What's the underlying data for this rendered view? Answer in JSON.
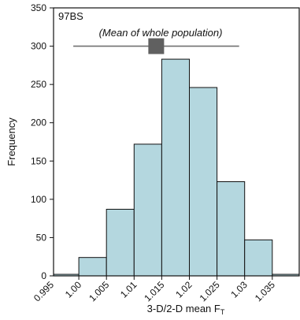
{
  "chart_data": {
    "type": "bar",
    "panel_label": "97BS",
    "annotation": "(Mean of whole population)",
    "xlabel_main": "3-D/2-D mean F",
    "xlabel_sub": "T",
    "ylabel": "Frequency",
    "ylim": [
      0,
      350
    ],
    "yticks": [
      0,
      50,
      100,
      150,
      200,
      250,
      300,
      350
    ],
    "xlim": [
      0.995,
      1.035
    ],
    "xticks": [
      "0.995",
      "1.00",
      "1.005",
      "1.01",
      "1.015",
      "1.02",
      "1.025",
      "1.03",
      "1.035"
    ],
    "bins": [
      {
        "from": 0.995,
        "to": 1.0,
        "value": 2
      },
      {
        "from": 1.0,
        "to": 1.005,
        "value": 24
      },
      {
        "from": 1.005,
        "to": 1.01,
        "value": 87
      },
      {
        "from": 1.01,
        "to": 1.015,
        "value": 172
      },
      {
        "from": 1.015,
        "to": 1.02,
        "value": 283
      },
      {
        "from": 1.02,
        "to": 1.025,
        "value": 246
      },
      {
        "from": 1.025,
        "to": 1.03,
        "value": 123
      },
      {
        "from": 1.03,
        "to": 1.035,
        "value": 47
      },
      {
        "from": 1.035,
        "to": 1.04,
        "value": 2
      }
    ],
    "mean_marker": {
      "mean": 1.014,
      "range": [
        0.999,
        1.029
      ],
      "y": 300
    },
    "bar_color": "#b4d7df",
    "marker_color": "#606060",
    "grid": false
  }
}
